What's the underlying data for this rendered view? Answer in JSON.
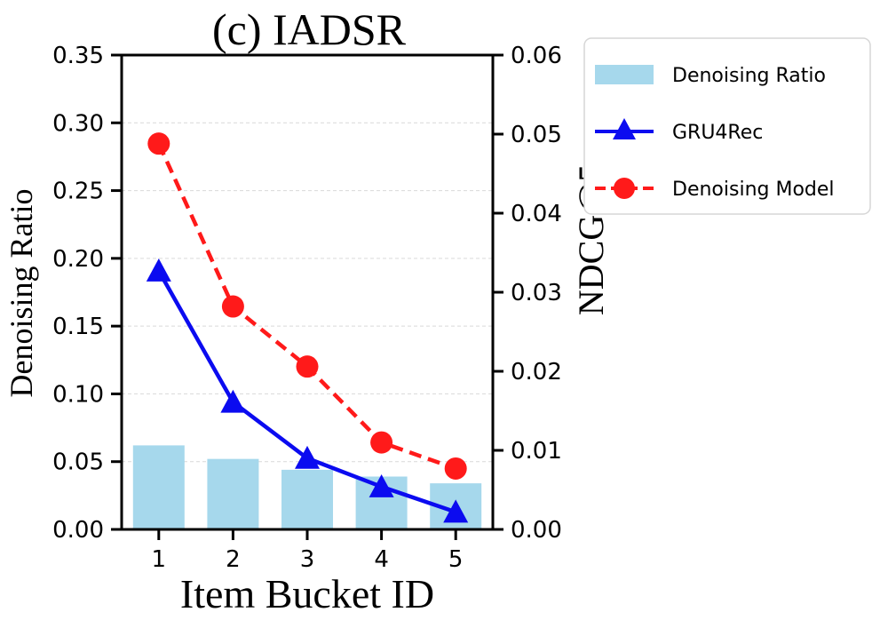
{
  "chart_data": {
    "type": "bar+line",
    "title": "(c) IADSR",
    "xlabel": "Item Bucket ID",
    "ylabel_left": "Denoising Ratio",
    "ylabel_right": "NDCG@5",
    "categories": [
      "1",
      "2",
      "3",
      "4",
      "5"
    ],
    "ylim_left": [
      0,
      0.35
    ],
    "ylim_right": [
      0,
      0.06
    ],
    "left_ticks": [
      "0.00",
      "0.05",
      "0.10",
      "0.15",
      "0.20",
      "0.25",
      "0.30",
      "0.35"
    ],
    "right_ticks": [
      "0.00",
      "0.01",
      "0.02",
      "0.03",
      "0.04",
      "0.05",
      "0.06"
    ],
    "grid": "horizontal dashed",
    "legend_position": "outside right, top",
    "bars": {
      "name": "Denoising Ratio",
      "axis": "left",
      "values": [
        0.062,
        0.052,
        0.044,
        0.039,
        0.034
      ],
      "color": "#a6d8ec"
    },
    "series": [
      {
        "name": "GRU4Rec",
        "axis": "right",
        "values": [
          0.0327,
          0.0161,
          0.009,
          0.0054,
          0.0022
        ],
        "color": "#0b0bf0",
        "marker": "triangle",
        "line": "solid"
      },
      {
        "name": "Denoising Model",
        "axis": "right",
        "values": [
          0.0488,
          0.0282,
          0.0206,
          0.011,
          0.0077
        ],
        "color": "#ff1a1a",
        "marker": "circle",
        "line": "dashed"
      }
    ]
  }
}
